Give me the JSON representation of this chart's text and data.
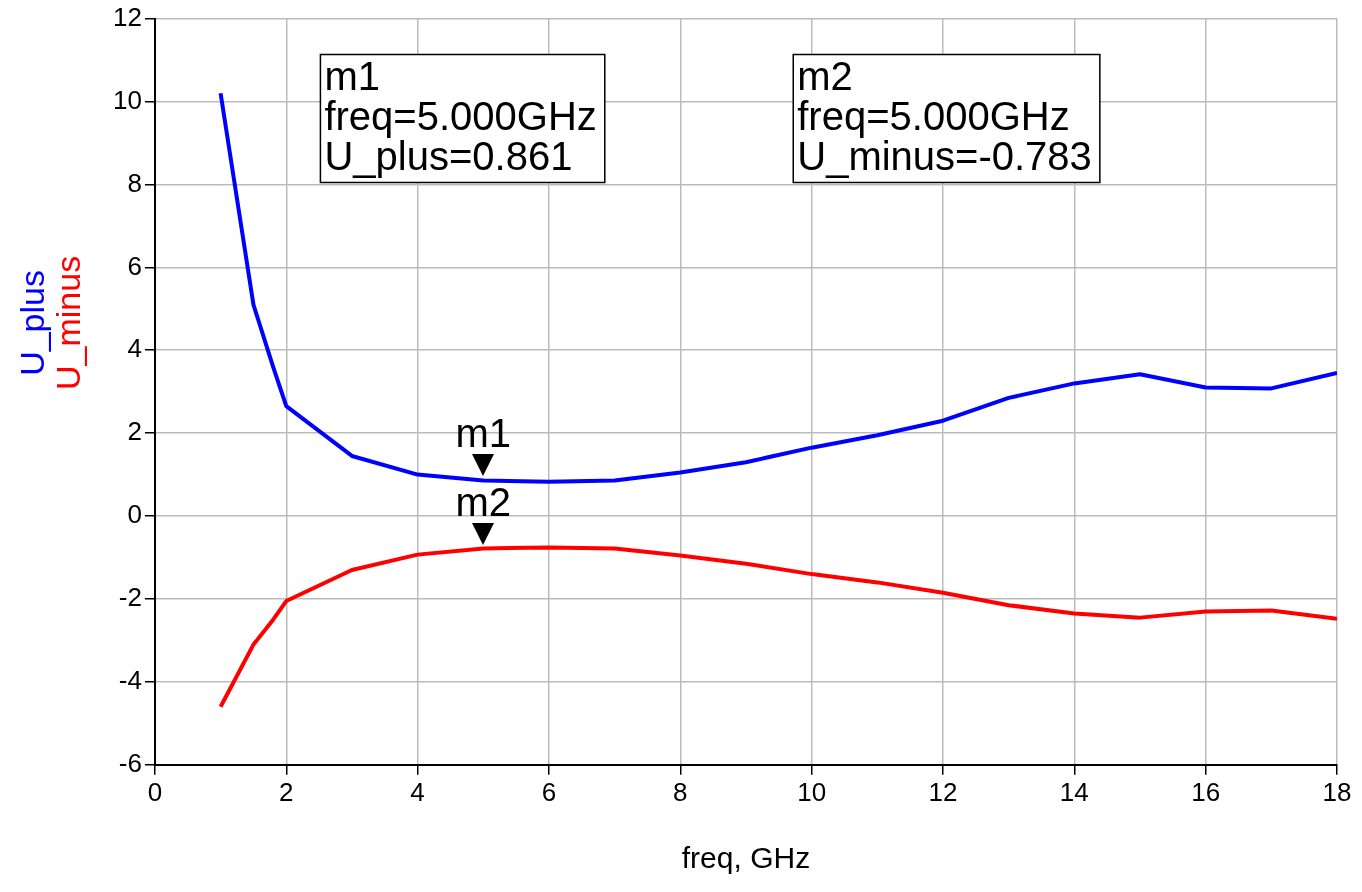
{
  "chart_data": {
    "type": "line",
    "xlabel": "freq, GHz",
    "x": [
      1,
      1.5,
      1.8,
      2,
      3,
      4,
      5,
      6,
      7,
      8,
      9,
      10,
      11,
      12,
      13,
      14,
      15,
      16,
      17,
      18
    ],
    "series": [
      {
        "name": "U_plus",
        "color": "#0000ff",
        "values": [
          10.2,
          5.1,
          3.6,
          2.65,
          1.45,
          1.0,
          0.86,
          0.83,
          0.86,
          1.05,
          1.3,
          1.65,
          1.95,
          2.3,
          2.85,
          3.2,
          3.42,
          3.1,
          3.08,
          3.45
        ]
      },
      {
        "name": "U_minus",
        "color": "#ff0000",
        "values": [
          -4.6,
          -3.1,
          -2.5,
          -2.05,
          -1.3,
          -0.93,
          -0.78,
          -0.76,
          -0.78,
          -0.95,
          -1.15,
          -1.4,
          -1.6,
          -1.85,
          -2.15,
          -2.35,
          -2.45,
          -2.3,
          -2.28,
          -2.48
        ]
      }
    ],
    "xlim": [
      0,
      18
    ],
    "xticks": [
      0,
      2,
      4,
      6,
      8,
      10,
      12,
      14,
      16,
      18
    ],
    "ylim": [
      -6,
      12
    ],
    "yticks": [
      -6,
      -4,
      -2,
      0,
      2,
      4,
      6,
      8,
      10,
      12
    ],
    "grid": true,
    "legend": false,
    "marker": "none",
    "line_style": "solid",
    "annotations": [
      "m1\nfreq=5.000GHz\nU_plus=0.861",
      "m2\nfreq=5.000GHz\nU_minus=-0.783",
      {
        "text": "m1",
        "x": 5,
        "y": 0.861
      },
      {
        "text": "m2",
        "x": 5,
        "y": -0.783
      }
    ]
  }
}
